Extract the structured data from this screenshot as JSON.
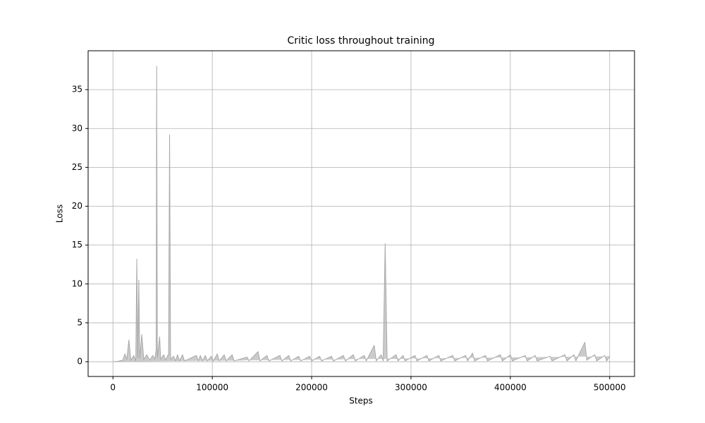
{
  "chart_data": {
    "type": "area",
    "title": "Critic loss throughout training",
    "x_label": "Steps",
    "y_label": "Loss",
    "x": [
      0,
      5000,
      10000,
      12000,
      14000,
      16000,
      18000,
      21000,
      23000,
      24000,
      25000,
      26000,
      27000,
      29000,
      31000,
      34000,
      37000,
      40000,
      42000,
      43500,
      44000,
      44700,
      47000,
      48000,
      51000,
      53000,
      56000,
      57000,
      58000,
      61000,
      63000,
      65000,
      67000,
      70000,
      72000,
      84000,
      86000,
      88000,
      90000,
      93000,
      95000,
      99000,
      101000,
      105000,
      107000,
      112000,
      114000,
      120000,
      122000,
      135000,
      137000,
      146000,
      148000,
      155000,
      157000,
      168000,
      170000,
      177000,
      179000,
      187000,
      189000,
      198000,
      200000,
      208000,
      210000,
      220000,
      222000,
      232000,
      234000,
      242000,
      244000,
      253000,
      255000,
      263000,
      265000,
      270000,
      272000,
      274000,
      276000,
      285000,
      287000,
      292000,
      294000,
      304000,
      306000,
      316000,
      318000,
      328000,
      330000,
      342000,
      344000,
      355000,
      357000,
      362000,
      364000,
      375000,
      377000,
      390000,
      392000,
      400000,
      402000,
      415000,
      417000,
      425000,
      427000,
      440000,
      442000,
      455000,
      457000,
      464000,
      466000,
      475000,
      477000,
      485000,
      487000,
      495000,
      497000,
      500000
    ],
    "values": [
      0,
      0.05,
      0.2,
      1.0,
      0.3,
      2.8,
      0.2,
      0.8,
      0.1,
      13.2,
      0.5,
      10.5,
      0.4,
      3.5,
      0.3,
      0.9,
      0.2,
      0.8,
      0.3,
      1.5,
      38,
      0.5,
      3.2,
      0.3,
      0.9,
      0.2,
      1.0,
      29.2,
      0.3,
      0.7,
      0.1,
      0.9,
      0.1,
      0.9,
      0.1,
      0.8,
      0.1,
      0.8,
      0.1,
      0.8,
      0.1,
      0.7,
      0.1,
      1.0,
      0.1,
      0.9,
      0.1,
      0.9,
      0.1,
      0.6,
      0.1,
      1.3,
      0.1,
      0.8,
      0.1,
      0.8,
      0.1,
      0.8,
      0.1,
      0.7,
      0.1,
      0.7,
      0.1,
      0.7,
      0.1,
      0.7,
      0.1,
      0.8,
      0.1,
      0.9,
      0.1,
      0.8,
      0.1,
      2.1,
      0.1,
      0.9,
      0.1,
      15.2,
      0.1,
      0.9,
      0.1,
      0.8,
      0.1,
      0.8,
      0.1,
      0.8,
      0.1,
      0.8,
      0.1,
      0.8,
      0.1,
      0.8,
      0.1,
      1.1,
      0.1,
      0.8,
      0.1,
      0.9,
      0.1,
      0.9,
      0.1,
      0.8,
      0.1,
      0.8,
      0.1,
      0.7,
      0.1,
      0.9,
      0.1,
      0.9,
      0.1,
      2.5,
      0.2,
      0.9,
      0.1,
      0.8,
      0.1,
      0.7
    ],
    "color": "#a9a9a9",
    "xlim": [
      -25000,
      525000
    ],
    "xticks": [
      0,
      100000,
      200000,
      300000,
      400000,
      500000
    ],
    "ylim": [
      -1.9,
      40
    ],
    "yticks": [
      0,
      5,
      10,
      15,
      20,
      25,
      30,
      35
    ],
    "grid": true
  }
}
